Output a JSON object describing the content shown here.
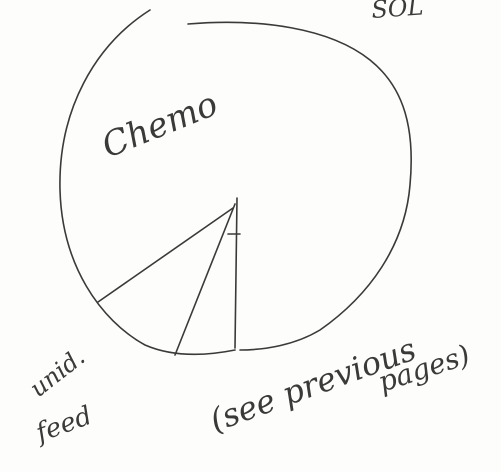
{
  "sketch": {
    "top_right_scrawl": "SOL",
    "largest_section_label": "Chemo",
    "bottom_left_label_line1": "unid.",
    "bottom_left_label_line2": "feed",
    "bottom_note_line1": "(see previous",
    "bottom_note_line2": "pages)"
  }
}
